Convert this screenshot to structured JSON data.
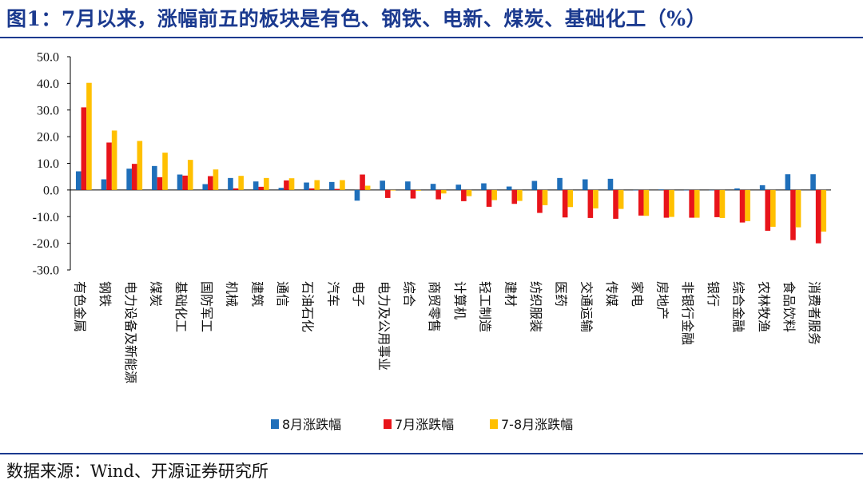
{
  "title": "图1：7月以来，涨幅前五的板块是有色、钢铁、电新、煤炭、基础化工（%）",
  "source": "数据来源：Wind、开源证券研究所",
  "chart_data": {
    "type": "bar",
    "categories": [
      "有色金属",
      "钢铁",
      "电力设备及新能源",
      "煤炭",
      "基础化工",
      "国防军工",
      "机械",
      "建筑",
      "通信",
      "石油石化",
      "汽车",
      "电子",
      "电力及公用事业",
      "综合",
      "商贸零售",
      "计算机",
      "轻工制造",
      "建材",
      "纺织服装",
      "医药",
      "交通运输",
      "传媒",
      "家电",
      "房地产",
      "非银行金融",
      "银行",
      "综合金融",
      "农林牧渔",
      "食品饮料",
      "消费者服务"
    ],
    "series": [
      {
        "name": "8月涨跌幅",
        "color": "#1f6fba",
        "values": [
          7.0,
          4.0,
          8.0,
          9.0,
          5.8,
          2.2,
          4.5,
          3.2,
          0.8,
          2.8,
          3.0,
          -4.0,
          3.5,
          3.2,
          2.3,
          2.0,
          2.5,
          1.3,
          3.4,
          4.5,
          4.0,
          4.2,
          0.0,
          0.2,
          0.0,
          0.0,
          0.6,
          1.8,
          5.9,
          5.9
        ]
      },
      {
        "name": "7月涨跌幅",
        "color": "#e8141a",
        "values": [
          31.0,
          17.8,
          9.8,
          4.8,
          5.4,
          5.2,
          0.6,
          1.2,
          3.6,
          0.6,
          0.4,
          5.8,
          -3.0,
          -3.2,
          -3.5,
          -4.2,
          -6.3,
          -5.2,
          -8.6,
          -10.3,
          -10.5,
          -10.8,
          -9.6,
          -10.4,
          -10.4,
          -10.2,
          -12.2,
          -15.3,
          -18.8,
          -20.0
        ]
      },
      {
        "name": "7-8月涨跌幅",
        "color": "#ffc000",
        "values": [
          40.2,
          22.3,
          18.4,
          14.0,
          11.3,
          7.7,
          5.3,
          4.5,
          4.4,
          3.7,
          3.7,
          1.6,
          -0.2,
          -0.3,
          -1.3,
          -2.3,
          -3.8,
          -4.1,
          -5.7,
          -6.4,
          -6.9,
          -7.1,
          -9.7,
          -10.1,
          -10.4,
          -10.5,
          -11.7,
          -13.8,
          -14.0,
          -15.6
        ]
      }
    ],
    "ylim": [
      -30,
      50
    ],
    "yticks": [
      "50.0",
      "40.0",
      "30.0",
      "20.0",
      "10.0",
      "0.0",
      "-10.0",
      "-20.0",
      "-30.0"
    ],
    "legend_position": "bottom-center",
    "grid": false
  }
}
